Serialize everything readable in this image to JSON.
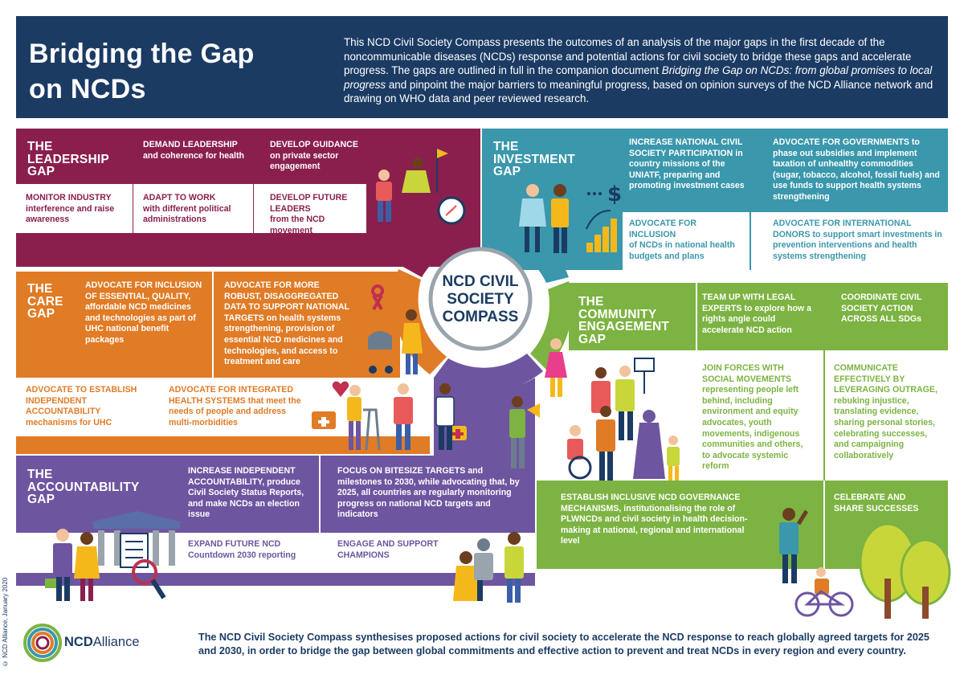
{
  "header": {
    "title_line1": "Bridging the Gap",
    "title_line2": "on NCDs",
    "intro_part1": "This NCD Civil Society Compass presents the outcomes of an analysis of the major gaps in the first decade of the noncommunicable diseases (NCDs) response and potential actions for civil society to bridge these gaps and accelerate progress. The gaps are outlined in full in the companion document ",
    "intro_doc": "Bridging the Gap on NCDs: from global promises to local progress",
    "intro_part2": " and pinpoint the major barriers to meaningful progress, based on opinion surveys of the NCD Alliance network and drawing on WHO data and peer reviewed research."
  },
  "colors": {
    "leadership": "#8a1f4e",
    "care": "#e07b26",
    "investment": "#3a97ac",
    "community": "#7cb342",
    "accountability": "#6e55a0",
    "header": "#1b3b63"
  },
  "compass": {
    "line1": "NCD CIVIL",
    "line2": "SOCIETY",
    "line3": "COMPASS"
  },
  "leadership": {
    "title": [
      "THE",
      "LEADERSHIP",
      "GAP"
    ],
    "a1_b": "DEMAND LEADERSHIP",
    "a1_r": "and coherence for health",
    "a2_b": "DEVELOP GUIDANCE",
    "a2_r": "on private sector engagement",
    "a3_b": "MONITOR INDUSTRY",
    "a3_r": "interference and raise awareness",
    "a4_b": "ADAPT TO WORK",
    "a4_r": "with different political administrations",
    "a5_b": "DEVELOP FUTURE LEADERS",
    "a5_r": "from the NCD movement"
  },
  "care": {
    "title": [
      "THE",
      "CARE",
      "GAP"
    ],
    "a1_b": "ADVOCATE FOR INCLUSION OF ESSENTIAL, QUALITY,",
    "a1_r": "affordable NCD medicines and technologies as part of UHC national benefit packages",
    "a2_b": "ADVOCATE FOR MORE ROBUST, DISAGGREGATED DATA TO SUPPORT NATIONAL TARGETS",
    "a2_r": "on health systems strengthening, provision of essential NCD medicines and technologies, and access to treatment and care",
    "a3_b": "ADVOCATE TO ESTABLISH INDEPENDENT ACCOUNTABILITY",
    "a3_r": "mechanisms for UHC",
    "a4_b": "ADVOCATE FOR INTEGRATED HEALTH SYSTEMS",
    "a4_r": "that meet the needs of people and address multi-morbidities"
  },
  "investment": {
    "title": [
      "THE",
      "INVESTMENT",
      "GAP"
    ],
    "a1_b": "INCREASE NATIONAL CIVIL SOCIETY PARTICIPATION",
    "a1_r": "in country missions of the UNIATF, preparing and promoting investment cases",
    "a2_b": "ADVOCATE FOR GOVERNMENTS",
    "a2_r": "to phase out subsidies and implement taxation of unhealthy commodities (sugar, tobacco, alcohol, fossil fuels) and use funds to support health systems strengthening",
    "a3_b": "ADVOCATE FOR INCLUSION",
    "a3_r": "of NCDs in national health budgets and plans",
    "a4_b": "ADVOCATE FOR INTERNATIONAL DONORS",
    "a4_r": "to support smart investments in prevention interventions and health systems strengthening"
  },
  "community": {
    "title": [
      "THE",
      "COMMUNITY",
      "ENGAGEMENT",
      "GAP"
    ],
    "a1_b": "TEAM UP WITH LEGAL EXPERTS",
    "a1_r": "to explore how a rights angle could accelerate NCD action",
    "a2_b": "COORDINATE CIVIL SOCIETY ACTION ACROSS ALL SDGs",
    "a2_r": "",
    "a3_b": "JOIN FORCES WITH SOCIAL MOVEMENTS",
    "a3_r": "representing people left behind, including environment and equity advocates, youth movements, indigenous communities and others, to advocate systemic reform",
    "a4_b": "COMMUNICATE EFFECTIVELY BY LEVERAGING OUTRAGE,",
    "a4_r": "rebuking injustice, translating evidence, sharing personal stories, celebrating successes, and campaigning collaboratively",
    "a5_b": "ESTABLISH INCLUSIVE NCD GOVERNANCE MECHANISMS,",
    "a5_r": "institutionalising the role of PLWNCDs and civil society in health decision-making at national, regional and international level",
    "a6_b": "CELEBRATE AND SHARE SUCCESSES",
    "a6_r": ""
  },
  "accountability": {
    "title": [
      "THE",
      "ACCOUNTABILITY",
      "GAP"
    ],
    "a1_b": "INCREASE INDEPENDENT ACCOUNTABILITY,",
    "a1_r": "produce Civil Society Status Reports, and make NCDs an election issue",
    "a2_b": "FOCUS ON BITESIZE TARGETS",
    "a2_r": "and milestones to 2030, while advocating that, by 2025, all countries are regularly monitoring progress on national NCD targets and indicators",
    "a3_b": "EXPAND FUTURE NCD",
    "a3_r": "Countdown 2030 reporting",
    "a4_b": "ENGAGE AND SUPPORT CHAMPIONS",
    "a4_r": ""
  },
  "footer": {
    "text": "The NCD Civil Society Compass synthesises proposed actions for civil society to accelerate the NCD response to reach globally agreed targets for 2025 and 2030, in order to bridge the gap between global commitments and effective action to prevent and treat NCDs in every region and every country.",
    "copyright": "© NCD Alliance, January 2020",
    "logo_bold": "NCD",
    "logo_regular": "Alliance"
  }
}
